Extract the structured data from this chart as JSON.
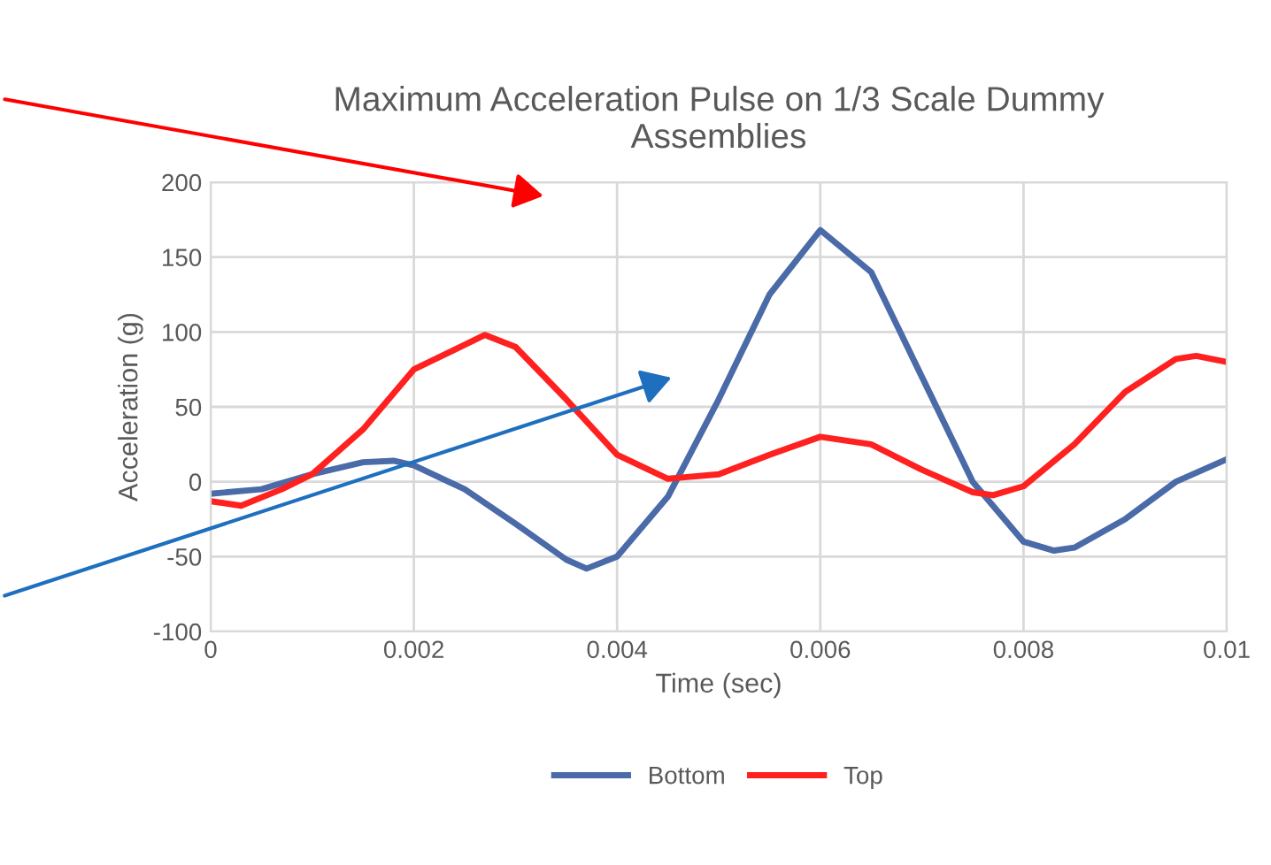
{
  "chart_data": {
    "type": "line",
    "title": "Maximum Acceleration Pulse on 1/3 Scale Dummy\nAssemblies",
    "xlabel": "Time (sec)",
    "ylabel": "Acceleration (g)",
    "xlim": [
      0,
      0.01
    ],
    "xticks": [
      0,
      0.002,
      0.004,
      0.006,
      0.008,
      0.01
    ],
    "ylim": [
      -100,
      200
    ],
    "yticks": [
      -100,
      -50,
      0,
      50,
      100,
      150,
      200
    ],
    "grid": true,
    "legend": "bottom",
    "marker": "none",
    "line_style": "solid",
    "series": [
      {
        "name": "Bottom",
        "color": "#4a6aa8",
        "x": [
          0,
          0.0005,
          0.001,
          0.0015,
          0.0018,
          0.002,
          0.0025,
          0.003,
          0.0035,
          0.0037,
          0.004,
          0.0045,
          0.005,
          0.0055,
          0.006,
          0.0065,
          0.007,
          0.0075,
          0.008,
          0.0083,
          0.0085,
          0.009,
          0.0095,
          0.01
        ],
        "values": [
          -8,
          -5,
          5,
          13,
          14,
          11,
          -5,
          -28,
          -52,
          -58,
          -50,
          -10,
          55,
          125,
          168,
          140,
          70,
          0,
          -40,
          -46,
          -44,
          -25,
          0,
          15
        ]
      },
      {
        "name": "Top",
        "color": "#ff2020",
        "x": [
          0,
          0.0003,
          0.0007,
          0.001,
          0.0015,
          0.002,
          0.0027,
          0.003,
          0.0035,
          0.004,
          0.0045,
          0.005,
          0.0055,
          0.006,
          0.0065,
          0.007,
          0.0075,
          0.0077,
          0.008,
          0.0085,
          0.009,
          0.0095,
          0.0097,
          0.01
        ],
        "values": [
          -13,
          -16,
          -5,
          5,
          35,
          75,
          98,
          90,
          55,
          18,
          2,
          5,
          18,
          30,
          25,
          8,
          -7,
          -9,
          -3,
          25,
          60,
          82,
          84,
          80
        ]
      }
    ]
  }
}
